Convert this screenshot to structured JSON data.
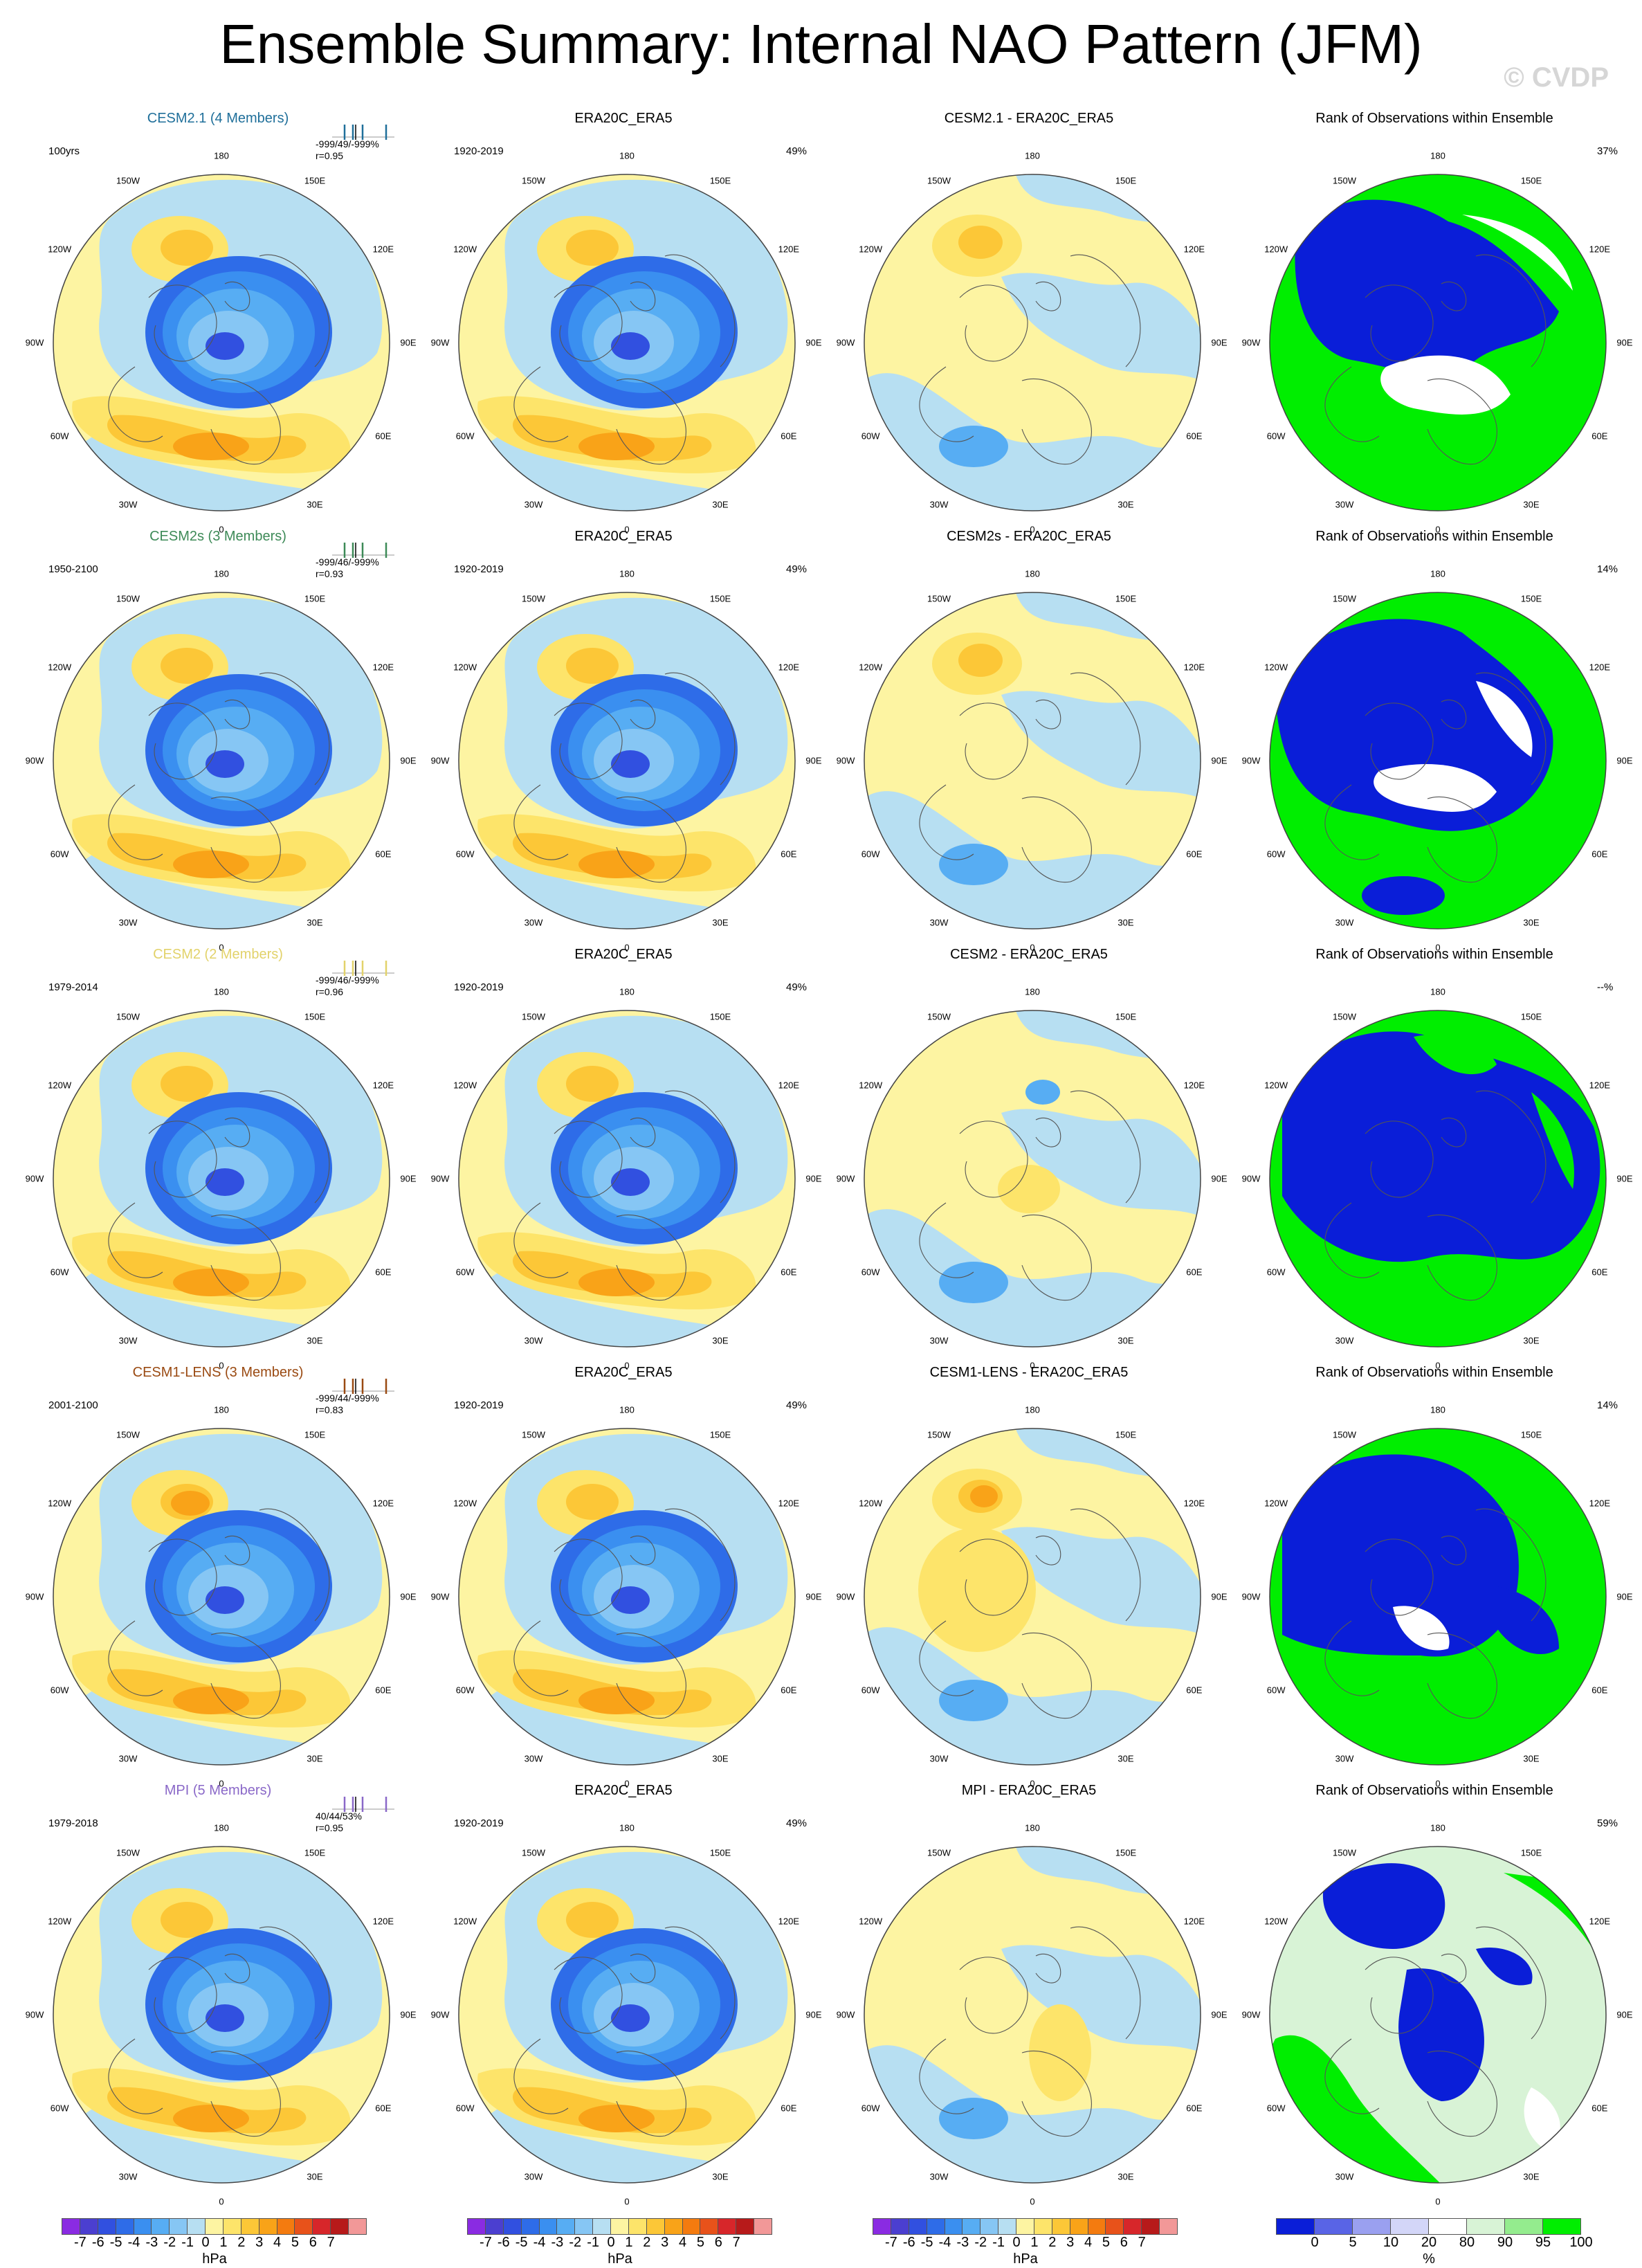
{
  "page": {
    "title": "Ensemble Summary: Internal NAO Pattern (JFM)",
    "watermark": "© CVDP"
  },
  "rows": [
    {
      "model": {
        "title": "CESM2.1 (4 Members)",
        "color": "#1f6f9a",
        "period": "100yrs",
        "stats": "-999/49/-999%",
        "r": "r=0.95",
        "pattern": "base"
      },
      "obs": {
        "title": "ERA20C_ERA5",
        "period": "1920-2019",
        "pct": "49%"
      },
      "diff": {
        "title": "CESM2.1 - ERA20C_ERA5",
        "pattern": "diff1"
      },
      "rank": {
        "title": "Rank of Observations within Ensemble",
        "pct": "37%",
        "pattern": 0
      }
    },
    {
      "model": {
        "title": "CESM2s (3 Members)",
        "color": "#3d8a57",
        "period": "1950-2100",
        "stats": "-999/46/-999%",
        "r": "r=0.93",
        "pattern": "base"
      },
      "obs": {
        "title": "ERA20C_ERA5",
        "period": "1920-2019",
        "pct": "49%"
      },
      "diff": {
        "title": "CESM2s - ERA20C_ERA5",
        "pattern": "diff2"
      },
      "rank": {
        "title": "Rank of Observations within Ensemble",
        "pct": "14%",
        "pattern": 1
      }
    },
    {
      "model": {
        "title": "CESM2 (2 Members)",
        "color": "#e2d26a",
        "period": "1979-2014",
        "stats": "-999/46/-999%",
        "r": "r=0.96",
        "pattern": "base"
      },
      "obs": {
        "title": "ERA20C_ERA5",
        "period": "1920-2019",
        "pct": "49%"
      },
      "diff": {
        "title": "CESM2 - ERA20C_ERA5",
        "pattern": "diff3"
      },
      "rank": {
        "title": "Rank of Observations within Ensemble",
        "pct": "--%",
        "pattern": 2
      }
    },
    {
      "model": {
        "title": "CESM1-LENS (3 Members)",
        "color": "#9a4a12",
        "period": "2001-2100",
        "stats": "-999/44/-999%",
        "r": "r=0.83",
        "pattern": "strong"
      },
      "obs": {
        "title": "ERA20C_ERA5",
        "period": "1920-2019",
        "pct": "49%"
      },
      "diff": {
        "title": "CESM1-LENS - ERA20C_ERA5",
        "pattern": "diff4"
      },
      "rank": {
        "title": "Rank of Observations within Ensemble",
        "pct": "14%",
        "pattern": 3
      }
    },
    {
      "model": {
        "title": "MPI (5 Members)",
        "color": "#8a68c8",
        "period": "1979-2018",
        "stats": "40/44/53%",
        "r": "r=0.95",
        "pattern": "base"
      },
      "obs": {
        "title": "ERA20C_ERA5",
        "period": "1920-2019",
        "pct": "49%"
      },
      "diff": {
        "title": "MPI - ERA20C_ERA5",
        "pattern": "diff5"
      },
      "rank": {
        "title": "Rank of Observations within Ensemble",
        "pct": "59%",
        "pattern": 4
      }
    }
  ],
  "grid_labels": [
    "180",
    "150E",
    "120E",
    "90E",
    "60E",
    "30E",
    "0",
    "30W",
    "60W",
    "90W",
    "120W",
    "150W"
  ],
  "legends": {
    "hpa": {
      "labels": [
        "-7",
        "-6",
        "-5",
        "-4",
        "-3",
        "-2",
        "-1",
        "0",
        "1",
        "2",
        "3",
        "4",
        "5",
        "6",
        "7"
      ],
      "colors": [
        "#8a2be2",
        "#4b3fd0",
        "#3150e0",
        "#2e6ce8",
        "#3a8ff0",
        "#57adf3",
        "#86c6f4",
        "#b7dff2",
        "#fdf4a2",
        "#fde46a",
        "#fcc737",
        "#f9a318",
        "#f47b0f",
        "#e8521a",
        "#d7262a",
        "#b71a1a",
        "#f29898"
      ],
      "unit": "hPa"
    },
    "rank": {
      "labels": [
        "0",
        "5",
        "10",
        "20",
        "80",
        "90",
        "95",
        "100"
      ],
      "colors": [
        "#0a1ed8",
        "#5964e6",
        "#9aa0f0",
        "#d3d6f8",
        "#ffffff",
        "#d8f3d6",
        "#94ec8e",
        "#00ee00"
      ],
      "unit": "%"
    }
  }
}
